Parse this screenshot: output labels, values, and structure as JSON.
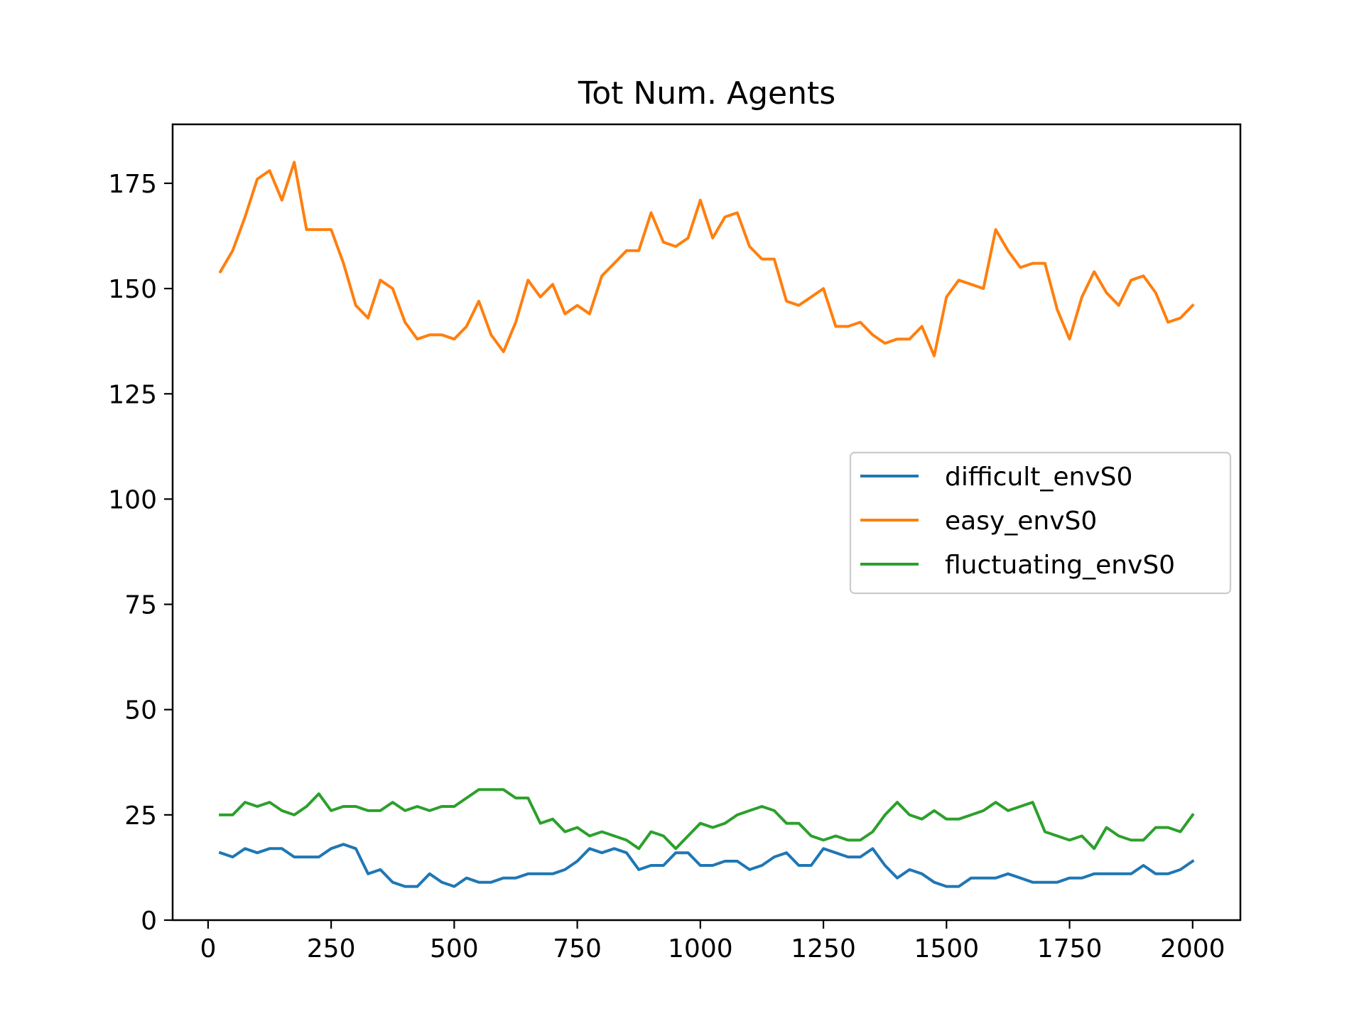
{
  "chart_data": {
    "type": "line",
    "title": "Tot Num. Agents",
    "xlabel": "",
    "ylabel": "",
    "xlim": [
      -72,
      2097
    ],
    "ylim": [
      0,
      189
    ],
    "x_ticks": [
      0,
      250,
      500,
      750,
      1000,
      1250,
      1500,
      1750,
      2000
    ],
    "y_ticks": [
      0,
      25,
      50,
      75,
      100,
      125,
      150,
      175
    ],
    "grid": false,
    "legend_position": "center-right",
    "x": [
      25,
      50,
      75,
      100,
      125,
      150,
      175,
      200,
      225,
      250,
      275,
      300,
      325,
      350,
      375,
      400,
      425,
      450,
      475,
      500,
      525,
      550,
      575,
      600,
      625,
      650,
      675,
      700,
      725,
      750,
      775,
      800,
      825,
      850,
      875,
      900,
      925,
      950,
      975,
      1000,
      1025,
      1050,
      1075,
      1100,
      1125,
      1150,
      1175,
      1200,
      1225,
      1250,
      1275,
      1300,
      1325,
      1350,
      1375,
      1400,
      1425,
      1450,
      1475,
      1500,
      1525,
      1550,
      1575,
      1600,
      1625,
      1650,
      1675,
      1700,
      1725,
      1750,
      1775,
      1800,
      1825,
      1850,
      1875,
      1900,
      1925,
      1950,
      1975,
      2000
    ],
    "series": [
      {
        "name": "difficult_envS0",
        "color": "#1f77b4",
        "values": [
          16,
          15,
          17,
          16,
          17,
          17,
          15,
          15,
          15,
          17,
          18,
          17,
          11,
          12,
          9,
          8,
          8,
          11,
          9,
          8,
          10,
          9,
          9,
          10,
          10,
          11,
          11,
          11,
          12,
          14,
          17,
          16,
          17,
          16,
          12,
          13,
          13,
          16,
          16,
          13,
          13,
          14,
          14,
          12,
          13,
          15,
          16,
          13,
          13,
          17,
          16,
          15,
          15,
          17,
          13,
          10,
          12,
          11,
          9,
          8,
          8,
          10,
          10,
          10,
          11,
          10,
          9,
          9,
          9,
          10,
          10,
          11,
          11,
          11,
          11,
          13,
          11,
          11,
          12,
          14
        ]
      },
      {
        "name": "easy_envS0",
        "color": "#ff7f0e",
        "values": [
          154,
          159,
          167,
          176,
          178,
          171,
          180,
          164,
          164,
          164,
          156,
          146,
          143,
          152,
          150,
          142,
          138,
          139,
          139,
          138,
          141,
          147,
          139,
          135,
          142,
          152,
          148,
          151,
          144,
          146,
          144,
          153,
          156,
          159,
          159,
          168,
          161,
          160,
          162,
          171,
          162,
          167,
          168,
          160,
          157,
          157,
          147,
          146,
          148,
          150,
          141,
          141,
          142,
          139,
          137,
          138,
          138,
          141,
          134,
          148,
          152,
          151,
          150,
          164,
          159,
          155,
          156,
          156,
          145,
          138,
          148,
          154,
          149,
          146,
          152,
          153,
          149,
          142,
          143,
          146
        ]
      },
      {
        "name": "fluctuating_envS0",
        "color": "#2ca02c",
        "values": [
          25,
          25,
          28,
          27,
          28,
          26,
          25,
          27,
          30,
          26,
          27,
          27,
          26,
          26,
          28,
          26,
          27,
          26,
          27,
          27,
          29,
          31,
          31,
          31,
          29,
          29,
          23,
          24,
          21,
          22,
          20,
          21,
          20,
          19,
          17,
          21,
          20,
          17,
          20,
          23,
          22,
          23,
          25,
          26,
          27,
          26,
          23,
          23,
          20,
          19,
          20,
          19,
          19,
          21,
          25,
          28,
          25,
          24,
          26,
          24,
          24,
          25,
          26,
          28,
          26,
          27,
          28,
          21,
          20,
          19,
          20,
          17,
          22,
          20,
          19,
          19,
          22,
          22,
          21,
          25
        ]
      }
    ]
  }
}
